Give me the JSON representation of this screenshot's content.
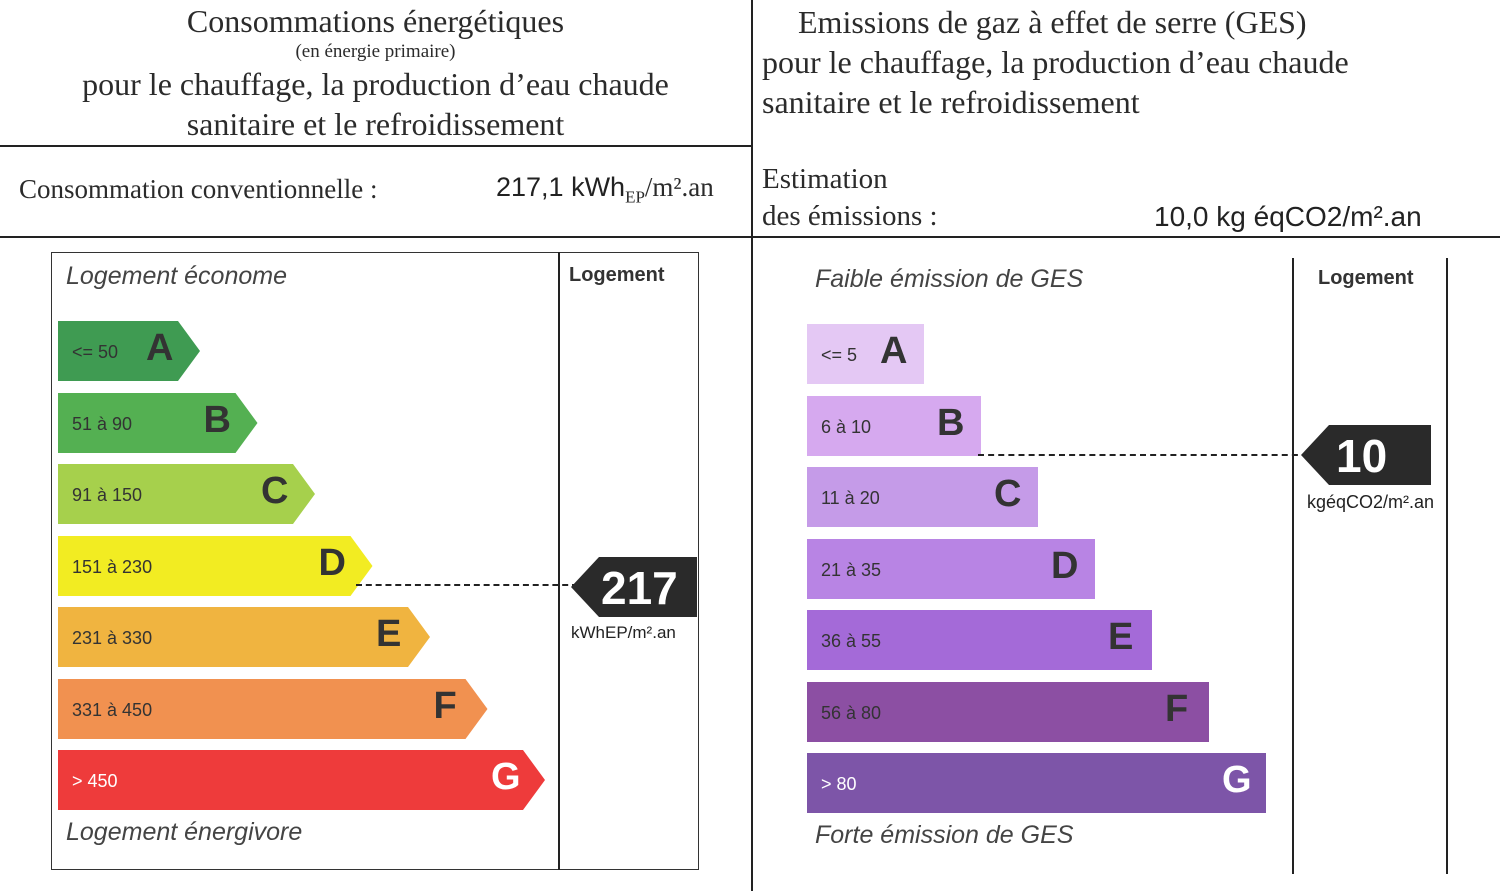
{
  "energy": {
    "title": "Consommations énergétiques",
    "subtitle": "(en énergie primaire)",
    "desc_line1": "pour le chauffage, la production d’eau chaude",
    "desc_line2": "sanitaire et le refroidissement",
    "label": "Consommation conventionnelle :",
    "value_num": "217,1 kWh",
    "value_sub": "EP",
    "value_unit": "/m².an",
    "top_caption": "Logement économe",
    "bottom_caption": "Logement énergivore",
    "column_header": "Logement",
    "indicator_value": "217",
    "indicator_unit": "kWhEP/m².an"
  },
  "ges": {
    "title": "Emissions de gaz à effet de serre (GES)",
    "desc_line1": "pour le chauffage, la production d’eau chaude",
    "desc_line2": "sanitaire et le refroidissement",
    "label_line1": "Estimation",
    "label_line2": "des émissions :",
    "value": "10,0 kg éqCO2/m².an",
    "top_caption": "Faible émission de GES",
    "bottom_caption": "Forte émission de GES",
    "column_header": "Logement",
    "indicator_value": "10",
    "indicator_unit": "kgéqCO2/m².an"
  },
  "chart_data": [
    {
      "type": "bar",
      "classes": [
        {
          "letter": "A",
          "range": "<= 50",
          "color": "#3f9b52"
        },
        {
          "letter": "B",
          "range": "51 à 90",
          "color": "#54b052"
        },
        {
          "letter": "C",
          "range": "91 à 150",
          "color": "#a6d04c"
        },
        {
          "letter": "D",
          "range": "151 à 230",
          "color": "#f2ec22"
        },
        {
          "letter": "E",
          "range": "231 à 330",
          "color": "#f0b440"
        },
        {
          "letter": "F",
          "range": "331 à 450",
          "color": "#f19150"
        },
        {
          "letter": "G",
          "range": "> 450",
          "color": "#ee3b3b"
        }
      ],
      "selected_class": "D",
      "selected_value": 217
    },
    {
      "type": "bar",
      "classes": [
        {
          "letter": "A",
          "range": "<= 5",
          "color": "#e4c8f4"
        },
        {
          "letter": "B",
          "range": "6 à 10",
          "color": "#d6a9ef"
        },
        {
          "letter": "C",
          "range": "11 à 20",
          "color": "#c59be8"
        },
        {
          "letter": "D",
          "range": "21 à 35",
          "color": "#b884e4"
        },
        {
          "letter": "E",
          "range": "36 à 55",
          "color": "#a46ad8"
        },
        {
          "letter": "F",
          "range": "56 à 80",
          "color": "#8c4fa3"
        },
        {
          "letter": "G",
          "range": "> 80",
          "color": "#7d55a8"
        }
      ],
      "selected_class": "B",
      "selected_value": 10
    }
  ]
}
